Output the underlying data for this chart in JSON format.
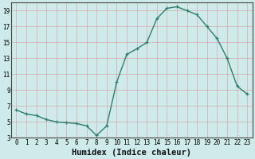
{
  "xlabel": "Humidex (Indice chaleur)",
  "x": [
    0,
    1,
    2,
    3,
    4,
    5,
    6,
    7,
    8,
    9,
    10,
    11,
    12,
    13,
    14,
    15,
    16,
    17,
    18,
    19,
    20,
    21,
    22,
    23
  ],
  "y": [
    6.5,
    6.0,
    5.8,
    5.3,
    5.0,
    4.9,
    4.8,
    4.5,
    3.3,
    4.5,
    10.0,
    13.5,
    14.2,
    15.0,
    18.0,
    19.3,
    19.5,
    19.0,
    18.5,
    17.0,
    15.5,
    13.0,
    9.5,
    8.5
  ],
  "line_color": "#2e7d6e",
  "marker": "+",
  "marker_size": 3,
  "bg_color": "#ceeaea",
  "grid_color": "#d8a8a8",
  "ylim": [
    3,
    20
  ],
  "xlim": [
    -0.5,
    23.5
  ],
  "yticks": [
    3,
    5,
    7,
    9,
    11,
    13,
    15,
    17,
    19
  ],
  "xticks": [
    0,
    1,
    2,
    3,
    4,
    5,
    6,
    7,
    8,
    9,
    10,
    11,
    12,
    13,
    14,
    15,
    16,
    17,
    18,
    19,
    20,
    21,
    22,
    23
  ],
  "tick_fontsize": 5.5,
  "xlabel_fontsize": 7.5
}
